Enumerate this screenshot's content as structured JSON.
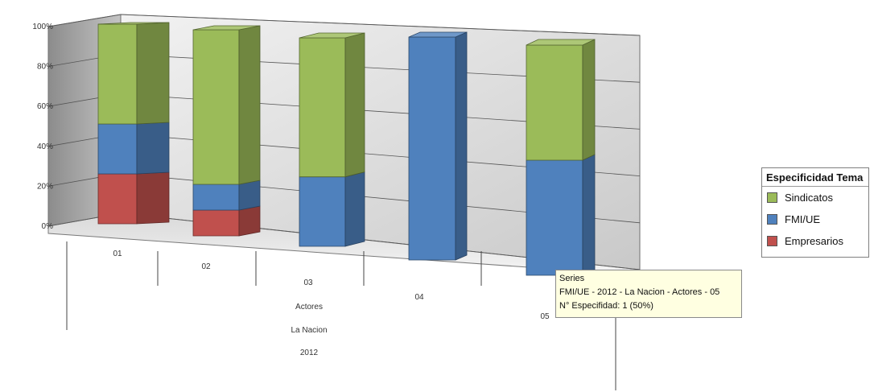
{
  "chart_data": {
    "type": "bar",
    "stacked": true,
    "percent": true,
    "three_d": true,
    "categories": [
      "01",
      "02",
      "03",
      "04",
      "05"
    ],
    "series": [
      {
        "name": "Empresarios",
        "color": "#c0504d",
        "values": [
          1,
          1,
          0,
          0,
          0
        ]
      },
      {
        "name": "FMI/UE",
        "color": "#4f81bd",
        "values": [
          1,
          1,
          1,
          1,
          1
        ]
      },
      {
        "name": "Sindicatos",
        "color": "#9bbb59",
        "values": [
          2,
          6,
          2,
          0,
          1
        ]
      }
    ],
    "ylim": [
      0,
      100
    ],
    "yticks": [
      "0%",
      "20%",
      "40%",
      "60%",
      "80%",
      "100%"
    ],
    "x_levels": [
      "Actores",
      "La Nacion",
      "2012"
    ],
    "grid": true
  },
  "legend": {
    "title": "Especificidad Tema",
    "items": [
      {
        "label": "Sindicatos",
        "color": "#9bbb59"
      },
      {
        "label": "FMI/UE",
        "color": "#4f81bd"
      },
      {
        "label": "Empresarios",
        "color": "#c0504d"
      }
    ]
  },
  "tooltip": {
    "line1": "Series",
    "line2": "FMI/UE - 2012 - La Nacion - Actores - 05",
    "line3": "N° Especifidad: 1 (50%)"
  }
}
